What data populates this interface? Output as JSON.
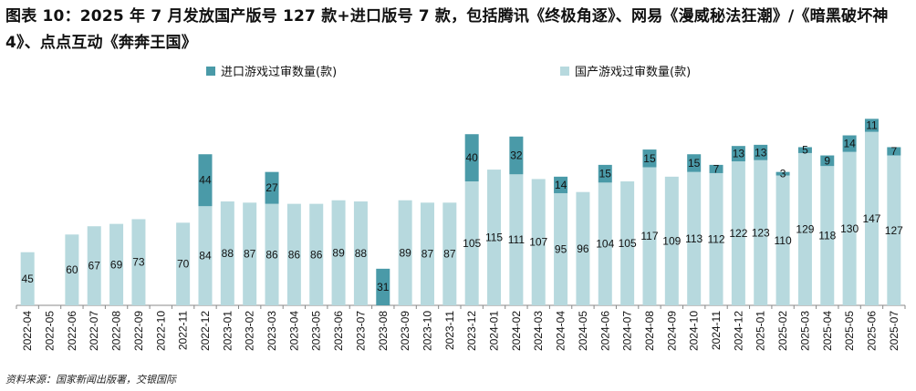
{
  "title": "图表 10：2025 年 7 月发放国产版号 127 款+进口版号 7 款，包括腾讯《终极角逐》、网易《漫威秘法狂潮》/《暗黑破坏神 4》、点点互动《奔奔王国》",
  "source": "资料来源：国家新闻出版署，交银国际",
  "colors": {
    "imported": "#4a9aa8",
    "domestic": "#b7d9de"
  },
  "chart_data": {
    "type": "bar",
    "stacked": true,
    "categories": [
      "2022-04",
      "2022-05",
      "2022-06",
      "2022-07",
      "2022-08",
      "2022-09",
      "2022-10",
      "2022-11",
      "2022-12",
      "2023-01",
      "2023-02",
      "2023-03",
      "2023-04",
      "2023-05",
      "2023-06",
      "2023-07",
      "2023-08",
      "2023-09",
      "2023-10",
      "2023-11",
      "2023-12",
      "2024-01",
      "2024-02",
      "2024-03",
      "2024-04",
      "2024-05",
      "2024-06",
      "2024-07",
      "2024-08",
      "2024-09",
      "2024-10",
      "2024-11",
      "2024-12",
      "2025-01",
      "2025-02",
      "2025-03",
      "2025-04",
      "2025-05",
      "2025-06",
      "2025-07"
    ],
    "series": [
      {
        "name": "国产游戏过审数量(款)",
        "values": [
          45,
          0,
          60,
          67,
          69,
          73,
          0,
          70,
          84,
          88,
          87,
          86,
          86,
          86,
          89,
          88,
          0,
          89,
          87,
          87,
          105,
          115,
          111,
          107,
          95,
          96,
          104,
          105,
          117,
          109,
          113,
          112,
          122,
          123,
          110,
          129,
          118,
          130,
          147,
          127
        ]
      },
      {
        "name": "进口游戏过审数量(款)",
        "values": [
          0,
          0,
          0,
          0,
          0,
          0,
          0,
          0,
          44,
          0,
          0,
          27,
          0,
          0,
          0,
          0,
          31,
          0,
          0,
          0,
          40,
          0,
          32,
          0,
          14,
          0,
          15,
          0,
          15,
          0,
          15,
          7,
          13,
          13,
          3,
          5,
          9,
          14,
          11,
          7
        ]
      }
    ],
    "legend_position": "top",
    "grid": false,
    "ylim": [
      0,
      160
    ]
  }
}
